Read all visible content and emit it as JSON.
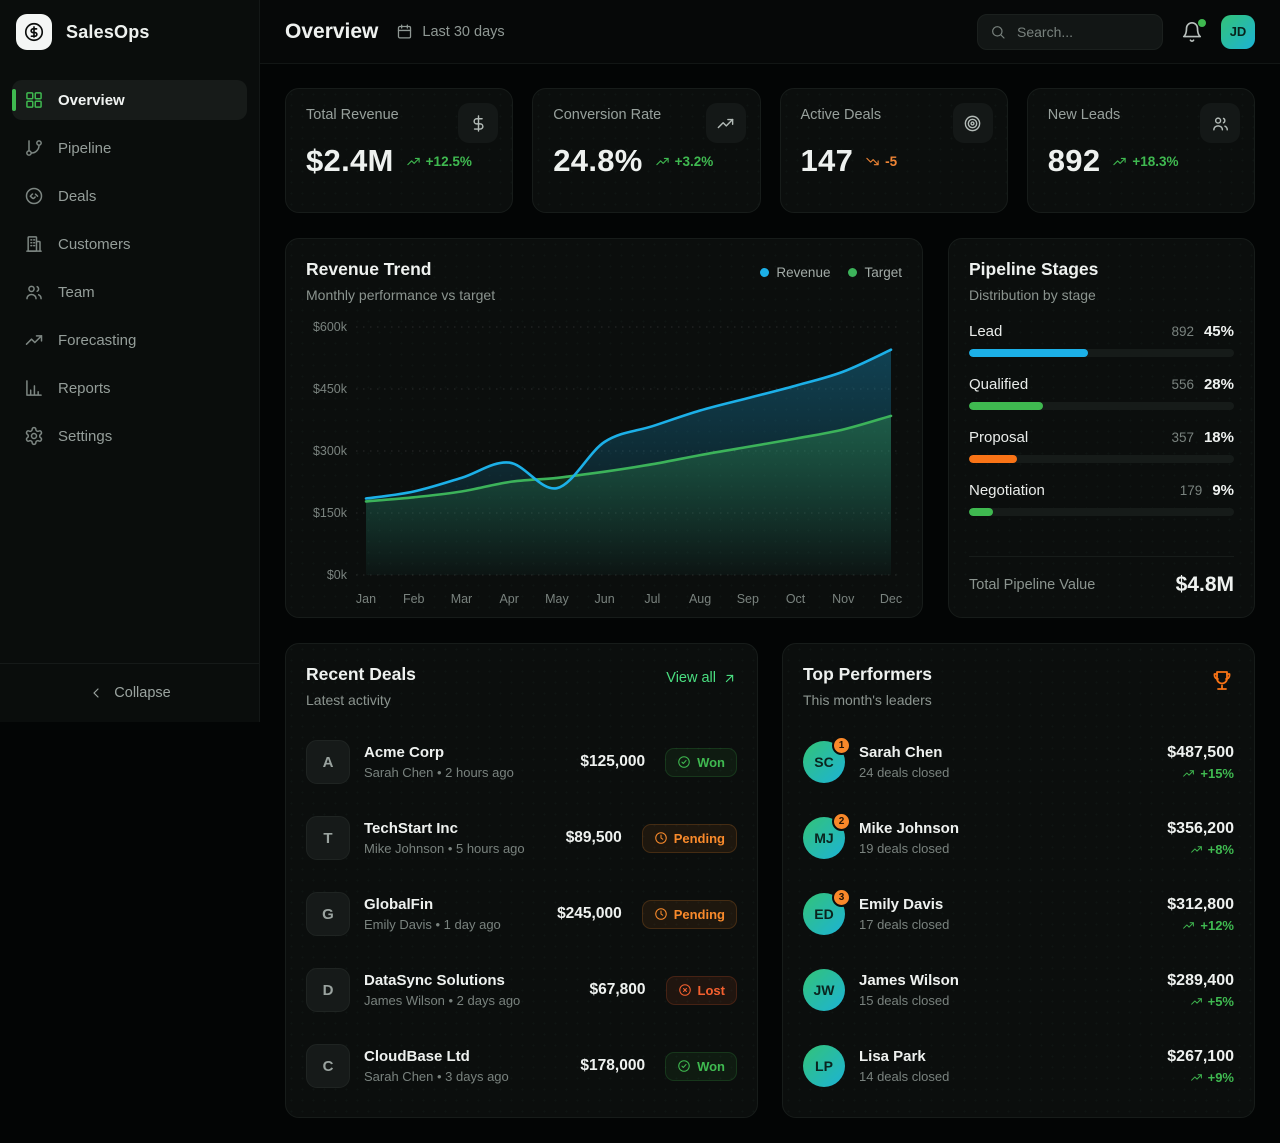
{
  "app": {
    "name": "SalesOps"
  },
  "sidebar": {
    "items": [
      {
        "label": "Overview",
        "icon": "grid-icon",
        "active": true
      },
      {
        "label": "Pipeline",
        "icon": "git-branch-icon",
        "active": false
      },
      {
        "label": "Deals",
        "icon": "handshake-icon",
        "active": false
      },
      {
        "label": "Customers",
        "icon": "building-icon",
        "active": false
      },
      {
        "label": "Team",
        "icon": "users-icon",
        "active": false
      },
      {
        "label": "Forecasting",
        "icon": "trending-up-icon",
        "active": false
      },
      {
        "label": "Reports",
        "icon": "bar-chart-icon",
        "active": false
      },
      {
        "label": "Settings",
        "icon": "gear-icon",
        "active": false
      }
    ],
    "collapse_label": "Collapse"
  },
  "header": {
    "title": "Overview",
    "period": "Last 30 days",
    "search_placeholder": "Search...",
    "avatar_initials": "JD",
    "notifications_unread": true
  },
  "kpis": [
    {
      "label": "Total Revenue",
      "icon": "dollar-icon",
      "value": "$2.4M",
      "delta": "+12.5%",
      "trend": "up"
    },
    {
      "label": "Conversion Rate",
      "icon": "trending-up-icon",
      "value": "24.8%",
      "delta": "+3.2%",
      "trend": "up"
    },
    {
      "label": "Active Deals",
      "icon": "target-icon",
      "value": "147",
      "delta": "-5",
      "trend": "down"
    },
    {
      "label": "New Leads",
      "icon": "users-icon",
      "value": "892",
      "delta": "+18.3%",
      "trend": "up"
    }
  ],
  "chart_data": {
    "type": "area",
    "title": "Revenue Trend",
    "subtitle": "Monthly performance vs target",
    "x": [
      "Jan",
      "Feb",
      "Mar",
      "Apr",
      "May",
      "Jun",
      "Jul",
      "Aug",
      "Sep",
      "Oct",
      "Nov",
      "Dec"
    ],
    "series": [
      {
        "name": "Revenue",
        "color": "#1cb0e8",
        "values": [
          185000,
          202000,
          235000,
          272000,
          210000,
          322000,
          360000,
          398000,
          428000,
          458000,
          492000,
          545000
        ]
      },
      {
        "name": "Target",
        "color": "#3cb35a",
        "values": [
          178000,
          188000,
          202000,
          225000,
          235000,
          250000,
          268000,
          290000,
          310000,
          330000,
          352000,
          385000
        ]
      }
    ],
    "ylim": [
      0,
      600000
    ],
    "yticks": [
      "$0k",
      "$150k",
      "$300k",
      "$450k",
      "$600k"
    ],
    "grid": "dashed-horizontal",
    "legend_position": "top-right"
  },
  "pipeline": {
    "title": "Pipeline Stages",
    "subtitle": "Distribution by stage",
    "stages": [
      {
        "name": "Lead",
        "count": "892",
        "percent": "45%",
        "value": 45,
        "color": "#1cb0e8"
      },
      {
        "name": "Qualified",
        "count": "556",
        "percent": "28%",
        "value": 28,
        "color": "#3fb950"
      },
      {
        "name": "Proposal",
        "count": "357",
        "percent": "18%",
        "value": 18,
        "color": "#f97316"
      },
      {
        "name": "Negotiation",
        "count": "179",
        "percent": "9%",
        "value": 9,
        "color": "#3fb950"
      }
    ],
    "total_label": "Total Pipeline Value",
    "total_value": "$4.8M"
  },
  "recent_deals": {
    "title": "Recent Deals",
    "subtitle": "Latest activity",
    "view_all_label": "View all",
    "deals": [
      {
        "initial": "A",
        "company": "Acme Corp",
        "owner": "Sarah Chen",
        "time": "2 hours ago",
        "amount": "$125,000",
        "status": "Won",
        "status_type": "won"
      },
      {
        "initial": "T",
        "company": "TechStart Inc",
        "owner": "Mike Johnson",
        "time": "5 hours ago",
        "amount": "$89,500",
        "status": "Pending",
        "status_type": "pending"
      },
      {
        "initial": "G",
        "company": "GlobalFin",
        "owner": "Emily Davis",
        "time": "1 day ago",
        "amount": "$245,000",
        "status": "Pending",
        "status_type": "pending"
      },
      {
        "initial": "D",
        "company": "DataSync Solutions",
        "owner": "James Wilson",
        "time": "2 days ago",
        "amount": "$67,800",
        "status": "Lost",
        "status_type": "lost"
      },
      {
        "initial": "C",
        "company": "CloudBase Ltd",
        "owner": "Sarah Chen",
        "time": "3 days ago",
        "amount": "$178,000",
        "status": "Won",
        "status_type": "won"
      }
    ]
  },
  "top_performers": {
    "title": "Top Performers",
    "subtitle": "This month's leaders",
    "performers": [
      {
        "initials": "SC",
        "rank": "1",
        "name": "Sarah Chen",
        "deals": "24 deals closed",
        "amount": "$487,500",
        "delta": "+15%"
      },
      {
        "initials": "MJ",
        "rank": "2",
        "name": "Mike Johnson",
        "deals": "19 deals closed",
        "amount": "$356,200",
        "delta": "+8%"
      },
      {
        "initials": "ED",
        "rank": "3",
        "name": "Emily Davis",
        "deals": "17 deals closed",
        "amount": "$312,800",
        "delta": "+12%"
      },
      {
        "initials": "JW",
        "rank": null,
        "name": "James Wilson",
        "deals": "15 deals closed",
        "amount": "$289,400",
        "delta": "+5%"
      },
      {
        "initials": "LP",
        "rank": null,
        "name": "Lisa Park",
        "deals": "14 deals closed",
        "amount": "$267,100",
        "delta": "+9%"
      }
    ]
  },
  "colors": {
    "accent_green": "#3fb950",
    "link_green": "#4ade80",
    "accent_cyan": "#1cb0e8",
    "accent_orange": "#f97316",
    "rank_badge_orange": "#f9882a"
  }
}
